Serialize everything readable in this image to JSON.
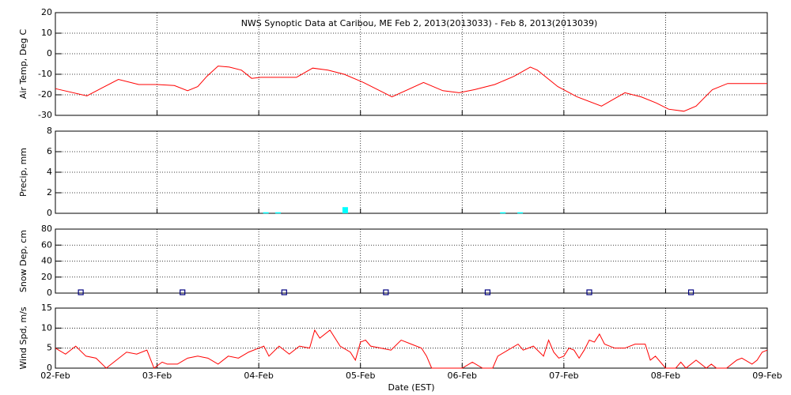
{
  "chart_data": [
    {
      "type": "line",
      "title": "NWS Synoptic Data at Caribou, ME   Feb  2, 2013(2013033) - Feb  8, 2013(2013039)",
      "ylabel": "Air Temp, Deg C",
      "color": "#ff0000",
      "grid": true,
      "xlim": [
        0,
        7
      ],
      "xticks": [
        0,
        1,
        2,
        3,
        4,
        5,
        6,
        7
      ],
      "ylim": [
        -30,
        20
      ],
      "yticks": [
        -30,
        -20,
        -10,
        0,
        10,
        20
      ],
      "x": [
        0,
        0.31,
        0.62,
        0.82,
        1.0,
        1.17,
        1.3,
        1.4,
        1.49,
        1.6,
        1.71,
        1.83,
        1.93,
        2.02,
        2.37,
        2.53,
        2.68,
        2.84,
        3.03,
        3.31,
        3.62,
        3.81,
        3.97,
        4.12,
        4.32,
        4.51,
        4.67,
        4.74,
        4.94,
        5.13,
        5.37,
        5.6,
        5.76,
        5.91,
        6.03,
        6.18,
        6.3,
        6.46,
        6.61,
        7.0
      ],
      "values": [
        -17,
        -20.5,
        -12.5,
        -15,
        -15,
        -15.5,
        -18,
        -16,
        -11,
        -6,
        -6.5,
        -8,
        -12,
        -11.5,
        -11.5,
        -7,
        -8,
        -10,
        -14,
        -21,
        -14,
        -18,
        -19,
        -17.5,
        -15,
        -11,
        -6.5,
        -8,
        -16,
        -21,
        -25.5,
        -19,
        -21,
        -24,
        -27,
        -28,
        -25.5,
        -17.5,
        -14.5,
        -14.5
      ]
    },
    {
      "type": "bar",
      "ylabel": "Precip, mm",
      "color": "#00ffff",
      "grid": true,
      "xlim": [
        0,
        7
      ],
      "xticks": [
        0,
        1,
        2,
        3,
        4,
        5,
        6,
        7
      ],
      "ylim": [
        0,
        8
      ],
      "yticks": [
        0,
        2,
        4,
        6,
        8
      ],
      "x": [
        2.07,
        2.19,
        2.85,
        4.4,
        4.57
      ],
      "values": [
        0.1,
        0.1,
        0.6,
        0.1,
        0.1
      ]
    },
    {
      "type": "scatter",
      "ylabel": "Snow Dep, cm",
      "color": "#000080",
      "grid": true,
      "xlim": [
        0,
        7
      ],
      "xticks": [
        0,
        1,
        2,
        3,
        4,
        5,
        6,
        7
      ],
      "ylim": [
        0,
        80
      ],
      "yticks": [
        0,
        20,
        40,
        60,
        80
      ],
      "x": [
        0.25,
        1.25,
        2.25,
        3.25,
        4.25,
        5.25,
        6.25
      ],
      "values": [
        0,
        0,
        0,
        0,
        0,
        0,
        0
      ]
    },
    {
      "type": "line",
      "ylabel": "Wind Spd, m/s",
      "xlabel": "Date (EST)",
      "color": "#ff0000",
      "grid": true,
      "xlim": [
        0,
        7
      ],
      "xticks": [
        {
          "value": 0,
          "label": "02-Feb"
        },
        {
          "value": 1,
          "label": "03-Feb"
        },
        {
          "value": 2,
          "label": "04-Feb"
        },
        {
          "value": 3,
          "label": "05-Feb"
        },
        {
          "value": 4,
          "label": "06-Feb"
        },
        {
          "value": 5,
          "label": "07-Feb"
        },
        {
          "value": 6,
          "label": "08-Feb"
        },
        {
          "value": 7,
          "label": "09-Feb"
        }
      ],
      "ylim": [
        0,
        15
      ],
      "yticks": [
        0,
        5,
        10,
        15
      ],
      "x": [
        0,
        0.1,
        0.2,
        0.3,
        0.4,
        0.5,
        0.6,
        0.7,
        0.8,
        0.9,
        0.97,
        1.05,
        1.1,
        1.2,
        1.3,
        1.4,
        1.5,
        1.6,
        1.7,
        1.8,
        1.9,
        2.0,
        2.05,
        2.1,
        2.2,
        2.3,
        2.4,
        2.5,
        2.55,
        2.6,
        2.7,
        2.8,
        2.9,
        2.95,
        3.0,
        3.05,
        3.1,
        3.2,
        3.3,
        3.4,
        3.5,
        3.6,
        3.65,
        3.7,
        3.8,
        3.9,
        4.0,
        4.1,
        4.2,
        4.3,
        4.35,
        4.45,
        4.55,
        4.6,
        4.7,
        4.8,
        4.85,
        4.9,
        4.95,
        5.0,
        5.05,
        5.1,
        5.15,
        5.2,
        5.25,
        5.3,
        5.35,
        5.4,
        5.5,
        5.6,
        5.7,
        5.8,
        5.85,
        5.9,
        6.0,
        6.1,
        6.15,
        6.2,
        6.3,
        6.4,
        6.45,
        6.5,
        6.6,
        6.7,
        6.75,
        6.85,
        6.9,
        6.95,
        7.0
      ],
      "values": [
        5,
        3.5,
        5.5,
        3,
        2.5,
        0,
        2,
        4,
        3.5,
        4.5,
        0,
        1.5,
        1,
        1,
        2.5,
        3,
        2.5,
        1,
        3,
        2.5,
        4,
        5,
        5.5,
        3,
        5.5,
        3.5,
        5.5,
        5,
        9.5,
        7.5,
        9.5,
        5.5,
        4,
        2,
        6.5,
        7,
        5.5,
        5,
        4.5,
        7,
        6,
        5,
        3,
        0,
        0,
        0,
        0,
        1.5,
        0,
        0,
        3,
        4.5,
        6,
        4.5,
        5.5,
        3,
        7,
        4,
        2.5,
        3,
        5,
        4.5,
        2.5,
        4.5,
        7,
        6.5,
        8.5,
        6,
        5,
        5,
        6,
        6,
        2,
        3,
        0,
        0,
        1.5,
        0,
        2,
        0,
        1,
        0,
        0,
        2,
        2.5,
        1,
        2,
        4,
        4.5
      ]
    }
  ]
}
